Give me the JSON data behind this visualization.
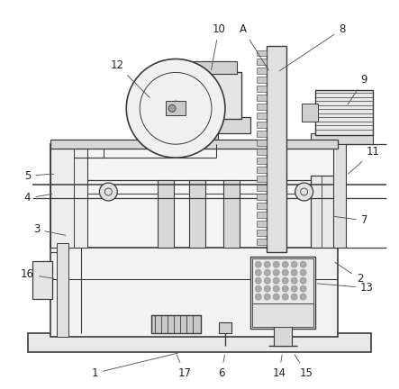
{
  "background_color": "#ffffff",
  "lc": "#3a3a3a",
  "figsize": [
    4.43,
    4.32
  ],
  "dpi": 100
}
